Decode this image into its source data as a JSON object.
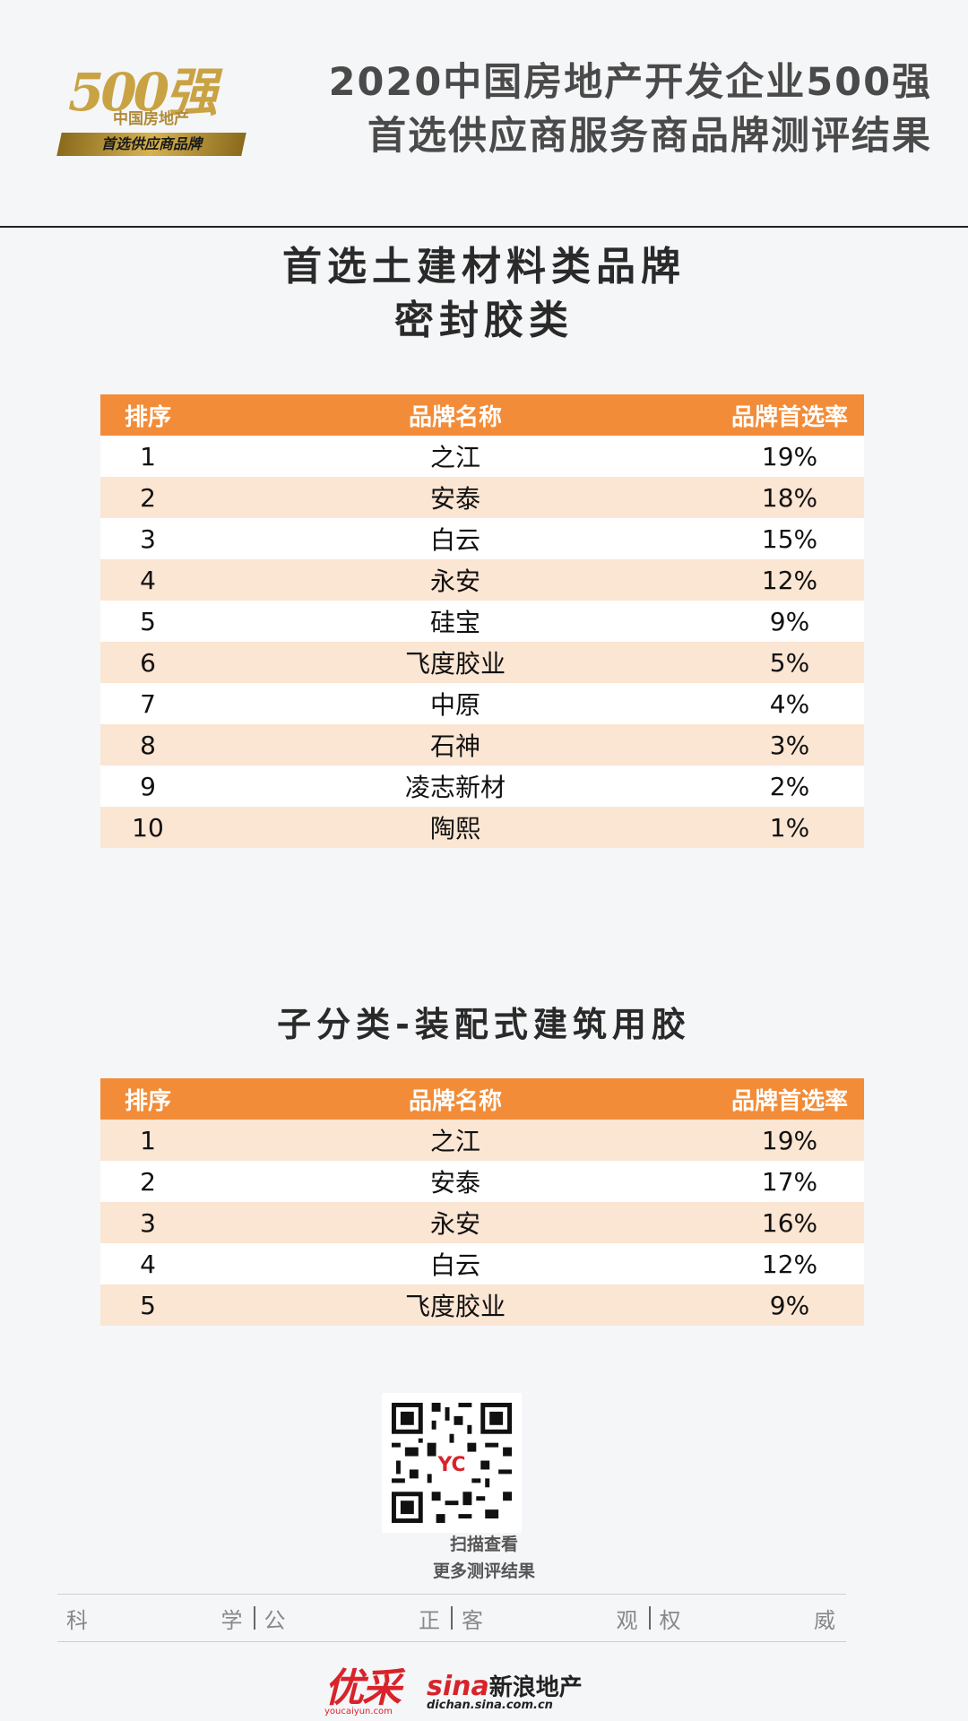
{
  "header": {
    "logo_number": "500强",
    "logo_subtitle": "中国房地产",
    "logo_banner": "首选供应商品牌",
    "title_line1": "2020中国房地产开发企业500强",
    "title_line2": "首选供应商服务商品牌测评结果"
  },
  "section1": {
    "title_line1": "首选土建材料类品牌",
    "title_line2": "密封胶类",
    "columns": [
      "排序",
      "品牌名称",
      "品牌首选率"
    ],
    "rows": [
      {
        "rank": "1",
        "brand": "之江",
        "rate": "19%"
      },
      {
        "rank": "2",
        "brand": "安泰",
        "rate": "18%"
      },
      {
        "rank": "3",
        "brand": "白云",
        "rate": "15%"
      },
      {
        "rank": "4",
        "brand": "永安",
        "rate": "12%"
      },
      {
        "rank": "5",
        "brand": "硅宝",
        "rate": "9%"
      },
      {
        "rank": "6",
        "brand": "飞度胶业",
        "rate": "5%"
      },
      {
        "rank": "7",
        "brand": "中原",
        "rate": "4%"
      },
      {
        "rank": "8",
        "brand": "石神",
        "rate": "3%"
      },
      {
        "rank": "9",
        "brand": "凌志新材",
        "rate": "2%"
      },
      {
        "rank": "10",
        "brand": "陶熙",
        "rate": "1%"
      }
    ]
  },
  "section2": {
    "title": "子分类-装配式建筑用胶",
    "columns": [
      "排序",
      "品牌名称",
      "品牌首选率"
    ],
    "rows": [
      {
        "rank": "1",
        "brand": "之江",
        "rate": "19%"
      },
      {
        "rank": "2",
        "brand": "安泰",
        "rate": "17%"
      },
      {
        "rank": "3",
        "brand": "永安",
        "rate": "16%"
      },
      {
        "rank": "4",
        "brand": "白云",
        "rate": "12%"
      },
      {
        "rank": "5",
        "brand": "飞度胶业",
        "rate": "9%"
      }
    ]
  },
  "qr": {
    "line1": "扫描查看",
    "line2": "更多测评结果"
  },
  "slogan": [
    [
      "科",
      "学"
    ],
    [
      "公",
      "正"
    ],
    [
      "客",
      "观"
    ],
    [
      "权",
      "威"
    ]
  ],
  "footer": {
    "logo1_main": "优采",
    "logo1_url": "youcaiyun.com",
    "logo2_brand_sina": "sina",
    "logo2_brand_cn": "新浪地产",
    "logo2_url": "dichan.sina.com.cn"
  },
  "colors": {
    "table_header": "#f28c38",
    "row_alt": "#fbe5d3",
    "accent_gold": "#c9a343"
  }
}
